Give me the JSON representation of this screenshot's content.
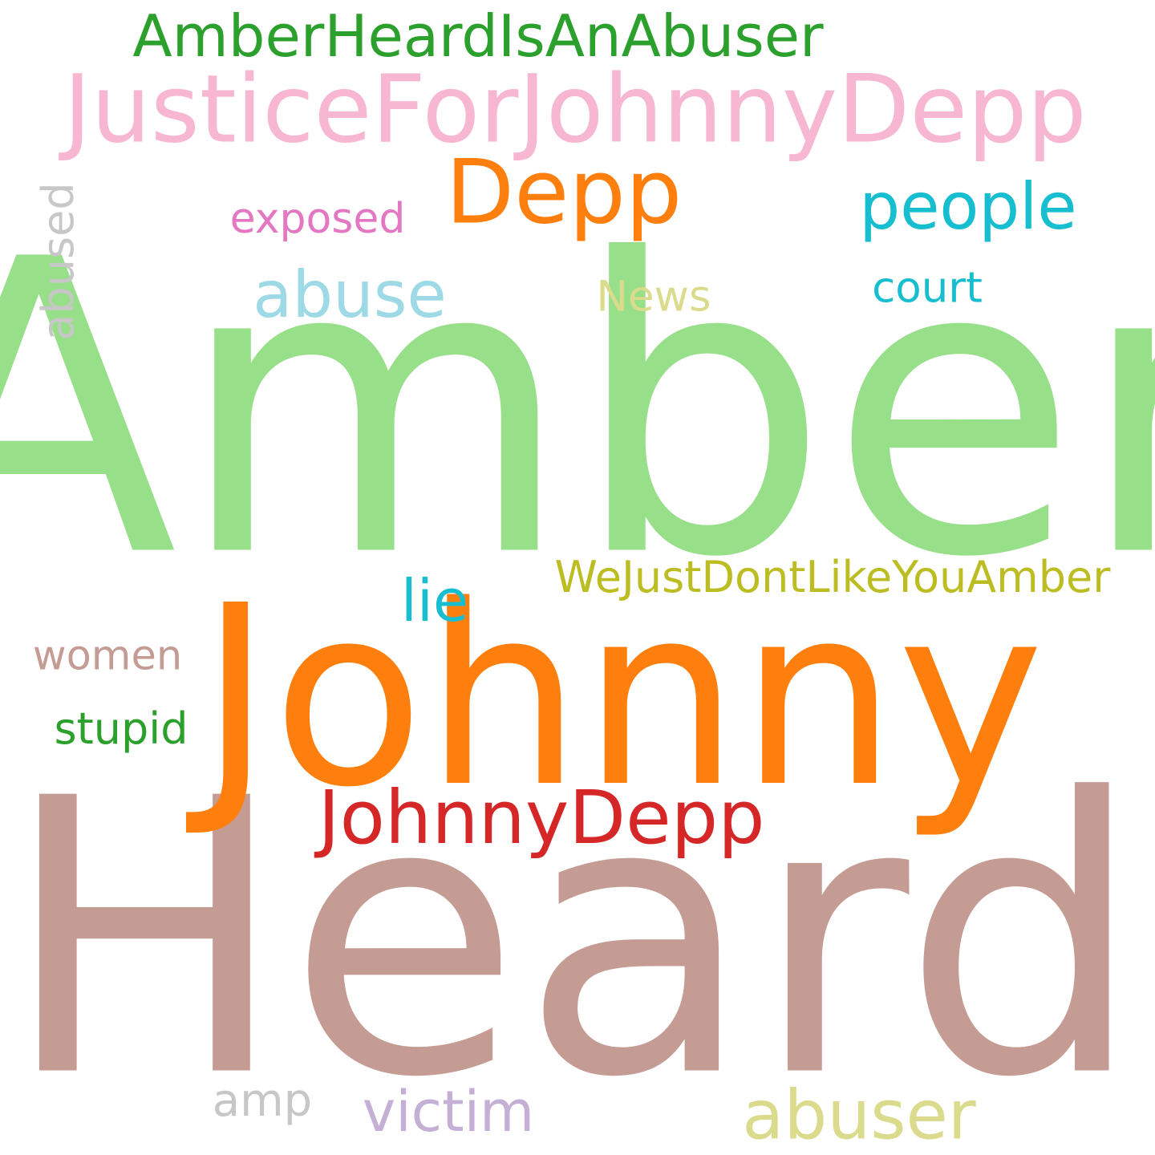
{
  "words": [
    {
      "text": "Amber",
      "color": "#98df8a"
    },
    {
      "text": "Heard",
      "color": "#c49c94"
    },
    {
      "text": "Johnny",
      "color": "#ff7f0e"
    },
    {
      "text": "JusticeForJohnnyDepp",
      "color": "#f7b6d2"
    },
    {
      "text": "AmberHeardIsAnAbuser",
      "color": "#2ca02c"
    },
    {
      "text": "Depp",
      "color": "#ff7f0e"
    },
    {
      "text": "people",
      "color": "#17becf"
    },
    {
      "text": "exposed",
      "color": "#e377c2"
    },
    {
      "text": "abused",
      "color": "#c7c7c7"
    },
    {
      "text": "abuse",
      "color": "#9edae5"
    },
    {
      "text": "News",
      "color": "#dbdb8d"
    },
    {
      "text": "court",
      "color": "#17becf"
    },
    {
      "text": "WeJustDontLikeYouAmber",
      "color": "#bcbd22"
    },
    {
      "text": "lie",
      "color": "#17becf"
    },
    {
      "text": "women",
      "color": "#c49c94"
    },
    {
      "text": "stupid",
      "color": "#2ca02c"
    },
    {
      "text": "JohnnyDepp",
      "color": "#d62728"
    },
    {
      "text": "amp",
      "color": "#c7c7c7"
    },
    {
      "text": "victim",
      "color": "#c5b0d5"
    },
    {
      "text": "abuser",
      "color": "#dbdb8d"
    }
  ]
}
